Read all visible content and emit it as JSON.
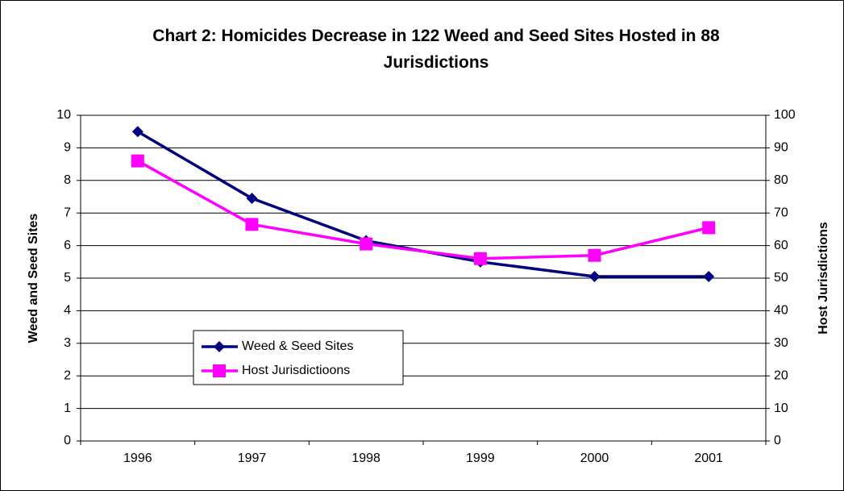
{
  "chart_data": {
    "type": "line",
    "title": "Chart 2: Homicides Decrease in 122 Weed and Seed Sites Hosted in 88 Jurisdictions",
    "ylabel": "Weed and Seed Sites",
    "y2label": "Host Jurisdictions",
    "categories": [
      "1996",
      "1997",
      "1998",
      "1999",
      "2000",
      "2001"
    ],
    "series": [
      {
        "name": "Weed & Seed Sites",
        "color": "#000080",
        "marker": "diamond",
        "values": [
          9.5,
          7.45,
          6.15,
          5.5,
          5.05,
          5.05
        ]
      },
      {
        "name": "Host Jurisdictioons",
        "color": "#ff00ff",
        "marker": "square",
        "axis": "y2",
        "values": [
          86,
          66.5,
          60.5,
          56,
          57,
          65.5
        ]
      }
    ],
    "ylim": [
      0,
      10
    ],
    "yticks": [
      0,
      1,
      2,
      3,
      4,
      5,
      6,
      7,
      8,
      9,
      10
    ],
    "y2lim": [
      0,
      100
    ],
    "y2ticks": [
      0,
      10,
      20,
      30,
      40,
      50,
      60,
      70,
      80,
      90,
      100
    ],
    "grid": true
  }
}
